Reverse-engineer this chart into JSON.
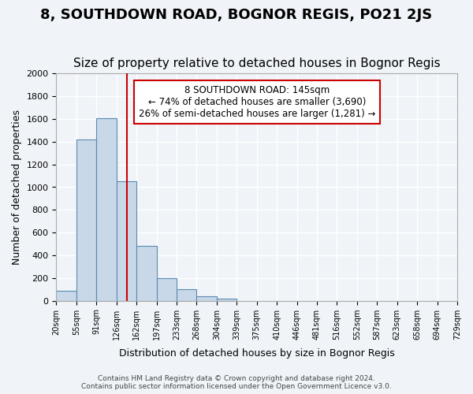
{
  "title": "8, SOUTHDOWN ROAD, BOGNOR REGIS, PO21 2JS",
  "subtitle": "Size of property relative to detached houses in Bognor Regis",
  "xlabel": "Distribution of detached houses by size in Bognor Regis",
  "ylabel": "Number of detached properties",
  "bin_labels": [
    "20sqm",
    "55sqm",
    "91sqm",
    "126sqm",
    "162sqm",
    "197sqm",
    "233sqm",
    "268sqm",
    "304sqm",
    "339sqm",
    "375sqm",
    "410sqm",
    "446sqm",
    "481sqm",
    "516sqm",
    "552sqm",
    "587sqm",
    "623sqm",
    "658sqm",
    "694sqm",
    "729sqm"
  ],
  "bar_heights": [
    85,
    1420,
    1610,
    1050,
    480,
    200,
    100,
    40,
    20,
    0,
    0,
    0,
    0,
    0,
    0,
    0,
    0,
    0,
    0,
    0
  ],
  "bar_color": "#c8d8e8",
  "bar_edge_color": "#5a8ab0",
  "property_line_x": 145,
  "bin_edges_sqm": [
    20,
    55,
    91,
    126,
    162,
    197,
    233,
    268,
    304,
    339,
    375,
    410,
    446,
    481,
    516,
    552,
    587,
    623,
    658,
    694,
    729
  ],
  "annotation_title": "8 SOUTHDOWN ROAD: 145sqm",
  "annotation_line1": "← 74% of detached houses are smaller (3,690)",
  "annotation_line2": "26% of semi-detached houses are larger (1,281) →",
  "annotation_box_color": "#ffffff",
  "annotation_box_edge": "#cc0000",
  "vline_color": "#cc0000",
  "ylim": [
    0,
    2000
  ],
  "yticks": [
    0,
    200,
    400,
    600,
    800,
    1000,
    1200,
    1400,
    1600,
    1800,
    2000
  ],
  "footer_line1": "Contains HM Land Registry data © Crown copyright and database right 2024.",
  "footer_line2": "Contains public sector information licensed under the Open Government Licence v3.0.",
  "bg_color": "#f0f4f8",
  "grid_color": "#ffffff",
  "title_fontsize": 13,
  "subtitle_fontsize": 11
}
